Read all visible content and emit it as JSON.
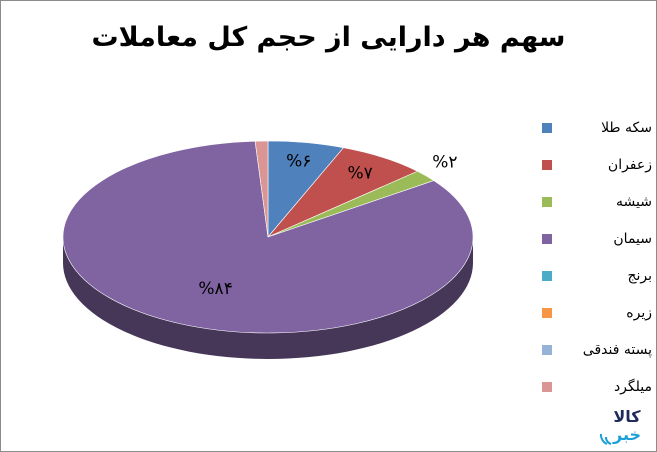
{
  "chart_data": {
    "type": "pie",
    "title": "سهم هر دارایی از حجم کل معاملات",
    "slices": [
      {
        "name": "سکه طلا",
        "value": 6,
        "label": "%۶",
        "color": "#4f81bd"
      },
      {
        "name": "زعفران",
        "value": 7,
        "label": "%۷",
        "color": "#c0504d"
      },
      {
        "name": "شیشه",
        "value": 2,
        "label": "%۲",
        "color": "#9bbb59"
      },
      {
        "name": "سیمان",
        "value": 84,
        "label": "%۸۴",
        "color": "#8064a2"
      },
      {
        "name": "برنج",
        "value": 0,
        "label": "",
        "color": "#4bacc6"
      },
      {
        "name": "زیره",
        "value": 0,
        "label": "",
        "color": "#f79646"
      },
      {
        "name": "پسته فندقی",
        "value": 0,
        "label": "",
        "color": "#95b3d7"
      },
      {
        "name": "میلگرد",
        "value": 1,
        "label": "",
        "color": "#d99694"
      }
    ],
    "legend_position": "right",
    "style": "3d"
  },
  "logo": {
    "line1": "کالا",
    "line2": "خبر",
    "colors": [
      "#1e2a5a",
      "#1a9fd8"
    ]
  }
}
